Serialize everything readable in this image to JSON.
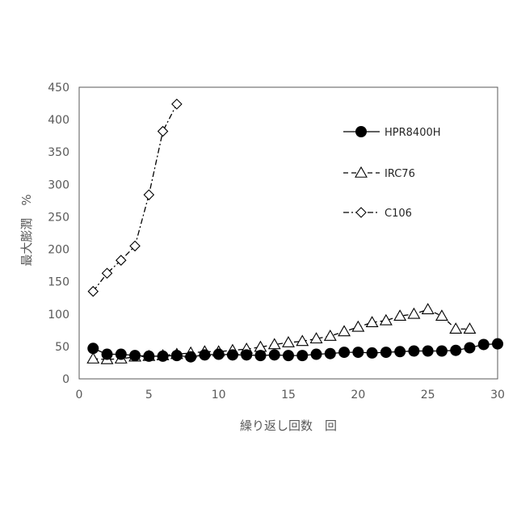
{
  "chart_data": {
    "type": "line",
    "xlabel": "繰り返し回数　回",
    "ylabel": "最大膨潤　%",
    "xlim": [
      0,
      30
    ],
    "ylim": [
      0,
      450
    ],
    "xticks": [
      0,
      5,
      10,
      15,
      20,
      25,
      30
    ],
    "yticks": [
      0,
      50,
      100,
      150,
      200,
      250,
      300,
      350,
      400,
      450
    ],
    "grid": false,
    "legend_position": "top-right",
    "series": [
      {
        "name": "HPR8400H",
        "marker": "filled-circle",
        "line": "solid",
        "color": "#000000",
        "x": [
          1,
          2,
          3,
          4,
          5,
          6,
          7,
          8,
          9,
          10,
          11,
          12,
          13,
          14,
          15,
          16,
          17,
          18,
          19,
          20,
          21,
          22,
          23,
          24,
          25,
          26,
          27,
          28,
          29,
          30
        ],
        "y": [
          47,
          38,
          38,
          36,
          35,
          35,
          36,
          34,
          37,
          38,
          37,
          37,
          36,
          37,
          36,
          36,
          38,
          39,
          41,
          41,
          40,
          41,
          42,
          43,
          43,
          43,
          44,
          48,
          53,
          54
        ]
      },
      {
        "name": "IRC76",
        "marker": "open-triangle",
        "line": "dashed",
        "color": "#000000",
        "x": [
          1,
          2,
          3,
          4,
          5,
          6,
          7,
          8,
          9,
          10,
          11,
          12,
          13,
          14,
          15,
          16,
          17,
          18,
          19,
          20,
          21,
          22,
          23,
          24,
          25,
          26,
          27,
          28
        ],
        "y": [
          31,
          30,
          31,
          34,
          35,
          36,
          38,
          40,
          42,
          42,
          44,
          46,
          49,
          53,
          56,
          58,
          62,
          66,
          73,
          80,
          87,
          90,
          97,
          100,
          107,
          97,
          77,
          77
        ]
      },
      {
        "name": "C106",
        "marker": "open-diamond",
        "line": "dash-dot",
        "color": "#000000",
        "x": [
          1,
          2,
          3,
          4,
          5,
          6,
          7
        ],
        "y": [
          135,
          163,
          183,
          205,
          284,
          382,
          424
        ]
      }
    ]
  }
}
